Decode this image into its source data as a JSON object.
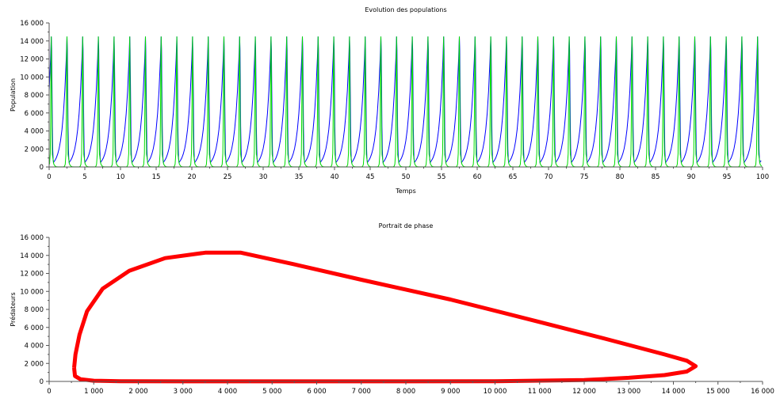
{
  "chart_data": [
    {
      "type": "line",
      "title": "Evolution des populations",
      "xlabel": "Temps",
      "ylabel": "Population",
      "xlim": [
        0,
        100
      ],
      "ylim": [
        0,
        16000
      ],
      "xticks": [
        "0",
        "5",
        "10",
        "15",
        "20",
        "25",
        "30",
        "35",
        "40",
        "45",
        "50",
        "55",
        "60",
        "65",
        "70",
        "75",
        "80",
        "85",
        "90",
        "95",
        "100"
      ],
      "yticks": [
        "0",
        "2 000",
        "4 000",
        "6 000",
        "8 000",
        "10 000",
        "12 000",
        "14 000",
        "16 000"
      ],
      "period": 2.2,
      "first_peak": 0.3,
      "series": [
        {
          "color": "#0000ff",
          "cycle_t": [
            0,
            0.2,
            0.4,
            0.6,
            0.8,
            1.0,
            1.2,
            1.4,
            1.6,
            1.8,
            1.9,
            1.95,
            2.0,
            2.05,
            2.1,
            2.15,
            2.2
          ],
          "cycle_y": [
            500,
            710,
            1010,
            1440,
            2050,
            2930,
            4170,
            5940,
            8460,
            12050,
            14500,
            13000,
            9000,
            4500,
            2000,
            900,
            500
          ]
        },
        {
          "color": "#00dd00",
          "cycle_t": [
            0,
            0.2,
            0.4,
            0.6,
            0.8,
            1.0,
            1.2,
            1.4,
            1.6,
            1.7,
            1.8,
            1.9,
            1.95,
            2.0,
            2.05,
            2.1,
            2.15,
            2.2
          ],
          "cycle_y": [
            1400,
            300,
            80,
            20,
            10,
            5,
            5,
            10,
            30,
            80,
            300,
            1500,
            5000,
            12000,
            14500,
            9000,
            4000,
            1400
          ]
        }
      ]
    },
    {
      "type": "line",
      "title": "Portrait de phase",
      "xlabel": "",
      "ylabel": "Prédateurs",
      "xlim": [
        0,
        16000
      ],
      "ylim": [
        0,
        16000
      ],
      "xticks": [
        "0",
        "1 000",
        "2 000",
        "3 000",
        "4 000",
        "5 000",
        "6 000",
        "7 000",
        "8 000",
        "9 000",
        "10 000",
        "11 000",
        "12 000",
        "13 000",
        "14 000",
        "15 000",
        "16 000"
      ],
      "yticks": [
        "0",
        "2 000",
        "4 000",
        "6 000",
        "8 000",
        "10 000",
        "12 000",
        "14 000",
        "16 000"
      ],
      "series": [
        {
          "color": "#ff0000",
          "x": [
            560,
            580,
            700,
            1000,
            1600,
            3000,
            5000,
            8000,
            10000,
            12000,
            13000,
            13800,
            14300,
            14500,
            14300,
            13800,
            12500,
            11000,
            9000,
            7000,
            5500,
            4300,
            3500,
            2600,
            1800,
            1200,
            850,
            680,
            590,
            560
          ],
          "y": [
            1500,
            600,
            250,
            80,
            30,
            10,
            5,
            5,
            20,
            150,
            400,
            700,
            1100,
            1700,
            2300,
            3000,
            4700,
            6600,
            9100,
            11300,
            13000,
            14300,
            14300,
            13700,
            12300,
            10300,
            7800,
            5200,
            3000,
            1500
          ]
        }
      ]
    }
  ]
}
